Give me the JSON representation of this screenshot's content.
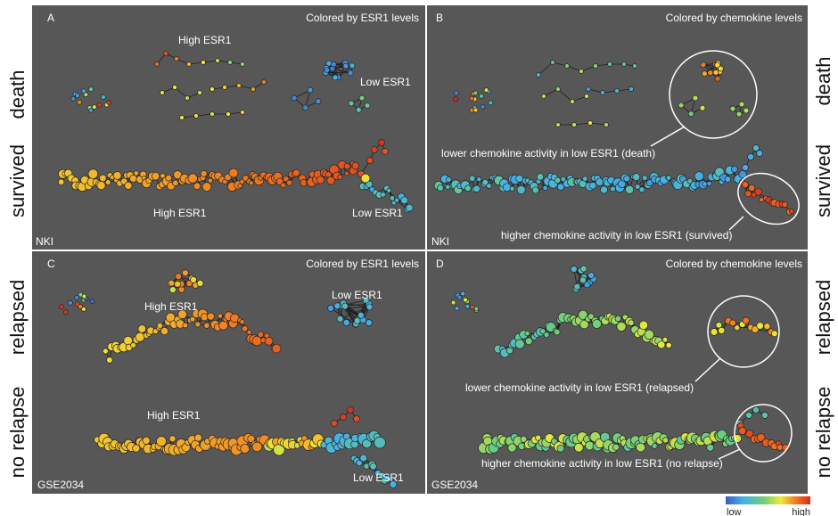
{
  "colors": {
    "panel_bg": "#575757",
    "gradient": [
      "#3b5bc4",
      "#45b0e6",
      "#6fcf7a",
      "#f2e838",
      "#f07f22",
      "#d8261f"
    ]
  },
  "side_labels": {
    "death": "death",
    "survived": "survived",
    "relapsed": "relapsed",
    "no_relapse": "no relapse"
  },
  "panels": {
    "A": {
      "letter": "A",
      "caption": "Colored by ESR1 levels",
      "dataset": "NKI",
      "labels": [
        "High ESR1",
        "Low ESR1",
        "High ESR1",
        "Low ESR1"
      ]
    },
    "B": {
      "letter": "B",
      "caption": "Colored by chemokine levels",
      "dataset": "NKI",
      "labels": [
        "lower chemokine activity in low ESR1 (death)",
        "higher chemokine activity in low ESR1 (survived)"
      ]
    },
    "C": {
      "letter": "C",
      "caption": "Colored by ESR1 levels",
      "dataset": "GSE2034",
      "labels": [
        "High ESR1",
        "Low ESR1",
        "High ESR1",
        "Low ESR1"
      ]
    },
    "D": {
      "letter": "D",
      "caption": "Colored by chemokine levels",
      "dataset": "GSE2034",
      "labels": [
        "lower chemokine activity in low ESR1 (relapsed)",
        "higher chemokine activity in low ESR1 (no relapse)"
      ]
    }
  },
  "legend": {
    "low": "low",
    "high": "high"
  }
}
